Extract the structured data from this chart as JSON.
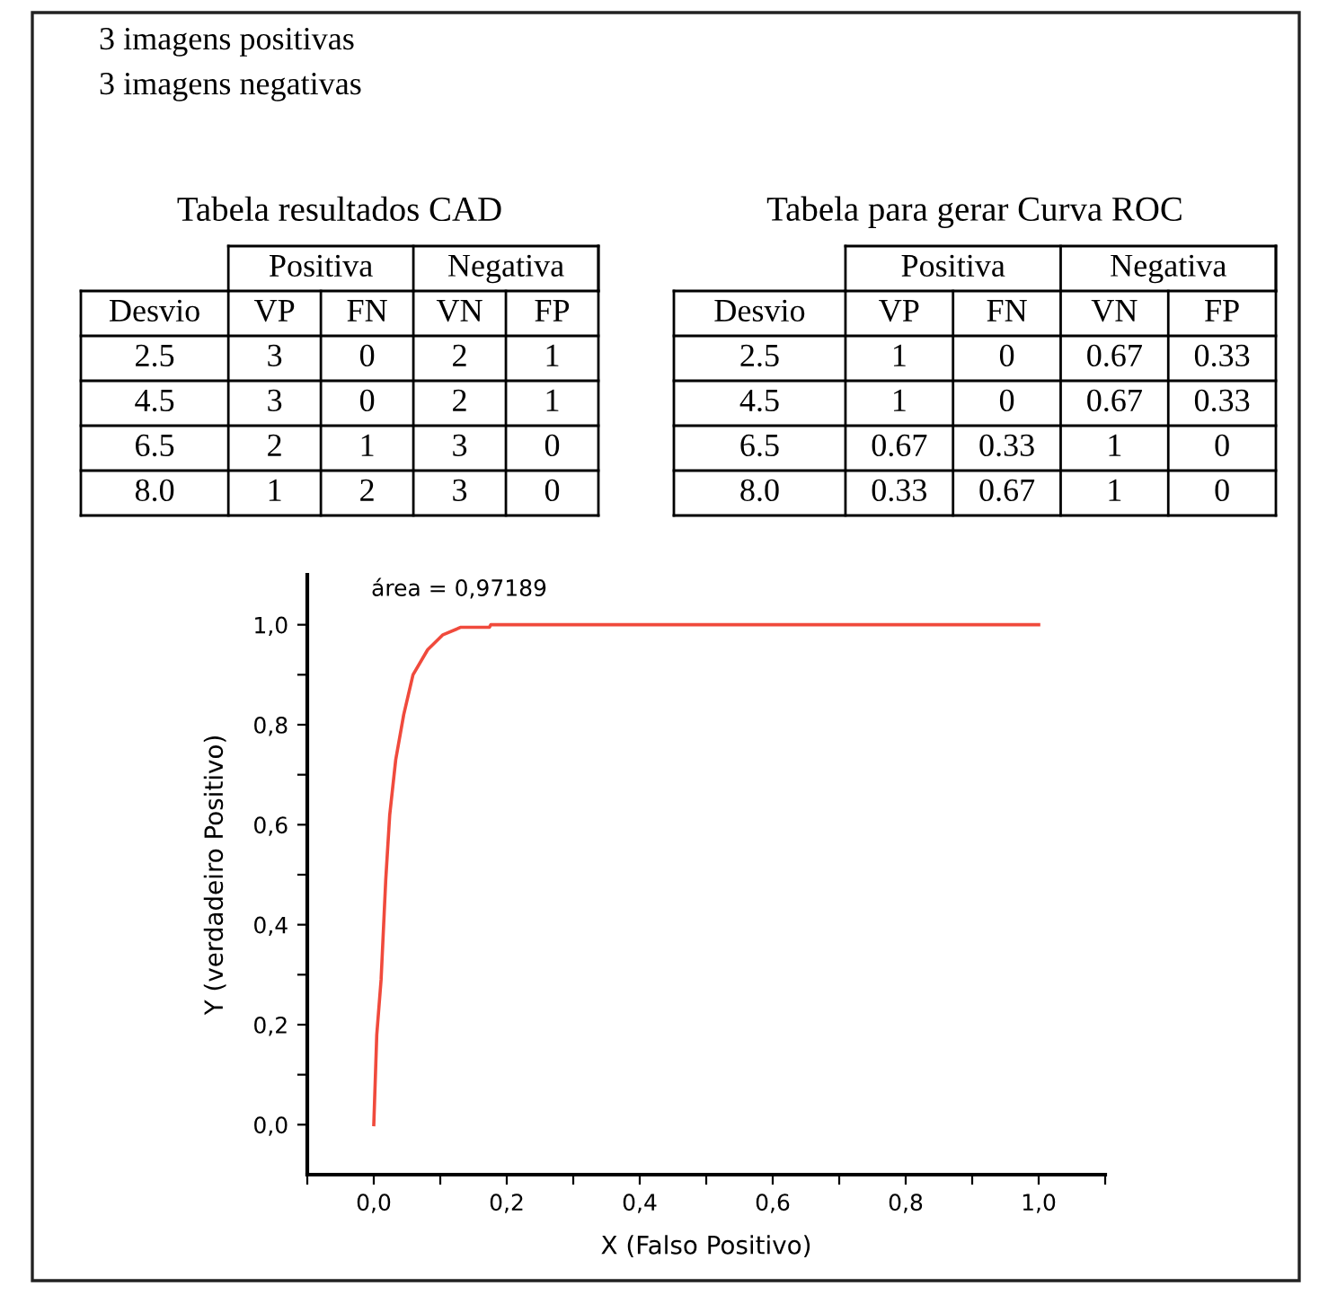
{
  "chart_data": [
    {
      "type": "other",
      "annotations": [
        "3 imagens positivas",
        "3 imagens negativas"
      ]
    },
    {
      "type": "other",
      "title": "Tabela resultados CAD",
      "annotations": [
        "Positiva",
        "Negativa"
      ],
      "categories": [
        "Desvio",
        "VP",
        "FN",
        "VN",
        "FP"
      ],
      "cell_labels": [
        [
          "2.5",
          "3",
          "0",
          "2",
          "1"
        ],
        [
          "4.5",
          "3",
          "0",
          "2",
          "1"
        ],
        [
          "6.5",
          "2",
          "1",
          "3",
          "0"
        ],
        [
          "8.0",
          "1",
          "2",
          "3",
          "0"
        ]
      ]
    },
    {
      "type": "other",
      "title": "Tabela para gerar Curva ROC",
      "annotations": [
        "Positiva",
        "Negativa"
      ],
      "categories": [
        "Desvio",
        "VP",
        "FN",
        "VN",
        "FP"
      ],
      "cell_labels": [
        [
          "2.5",
          "1",
          "0",
          "0.67",
          "0.33"
        ],
        [
          "4.5",
          "1",
          "0",
          "0.67",
          "0.33"
        ],
        [
          "6.5",
          "0.67",
          "0.33",
          "1",
          "0"
        ],
        [
          "8.0",
          "0.33",
          "0.67",
          "1",
          "0"
        ]
      ]
    },
    {
      "type": "line",
      "xlabel": "X (Falso Positivo)",
      "ylabel": "Y (verdadeiro Positivo)",
      "annotations": [
        "área = 0,97189"
      ],
      "xlim": [
        -0.1,
        1.1
      ],
      "ylim": [
        -0.1,
        1.1
      ],
      "xticks": [
        {
          "value": -0.1,
          "label": null
        },
        {
          "value": 0,
          "label": "0,0"
        },
        {
          "value": 0.1,
          "label": null
        },
        {
          "value": 0.2,
          "label": "0,2"
        },
        {
          "value": 0.3,
          "label": null
        },
        {
          "value": 0.4,
          "label": "0,4"
        },
        {
          "value": 0.5,
          "label": null
        },
        {
          "value": 0.6,
          "label": "0,6"
        },
        {
          "value": 0.7,
          "label": null
        },
        {
          "value": 0.8,
          "label": "0,8"
        },
        {
          "value": 0.9,
          "label": null
        },
        {
          "value": 1.0,
          "label": "1,0"
        },
        {
          "value": 1.1,
          "label": null
        }
      ],
      "yticks": [
        {
          "value": 0,
          "label": "0,0"
        },
        {
          "value": 0.1,
          "label": null
        },
        {
          "value": 0.2,
          "label": "0,2"
        },
        {
          "value": 0.3,
          "label": null
        },
        {
          "value": 0.4,
          "label": "0,4"
        },
        {
          "value": 0.5,
          "label": null
        },
        {
          "value": 0.6,
          "label": "0,6"
        },
        {
          "value": 0.7,
          "label": null
        },
        {
          "value": 0.8,
          "label": "0,8"
        },
        {
          "value": 0.9,
          "label": null
        },
        {
          "value": 1.0,
          "label": "1,0"
        }
      ],
      "series": [
        {
          "color": "#f04a3c",
          "x": [
            0,
            0.0045,
            0.011,
            0.018,
            0.024,
            0.033,
            0.045,
            0.059,
            0.081,
            0.104,
            0.131,
            0.174,
            0.176,
            1.0
          ],
          "values": [
            0,
            0.18,
            0.29,
            0.49,
            0.62,
            0.73,
            0.82,
            0.9,
            0.95,
            0.98,
            0.995,
            0.995,
            1.0,
            1.0
          ]
        }
      ]
    }
  ]
}
